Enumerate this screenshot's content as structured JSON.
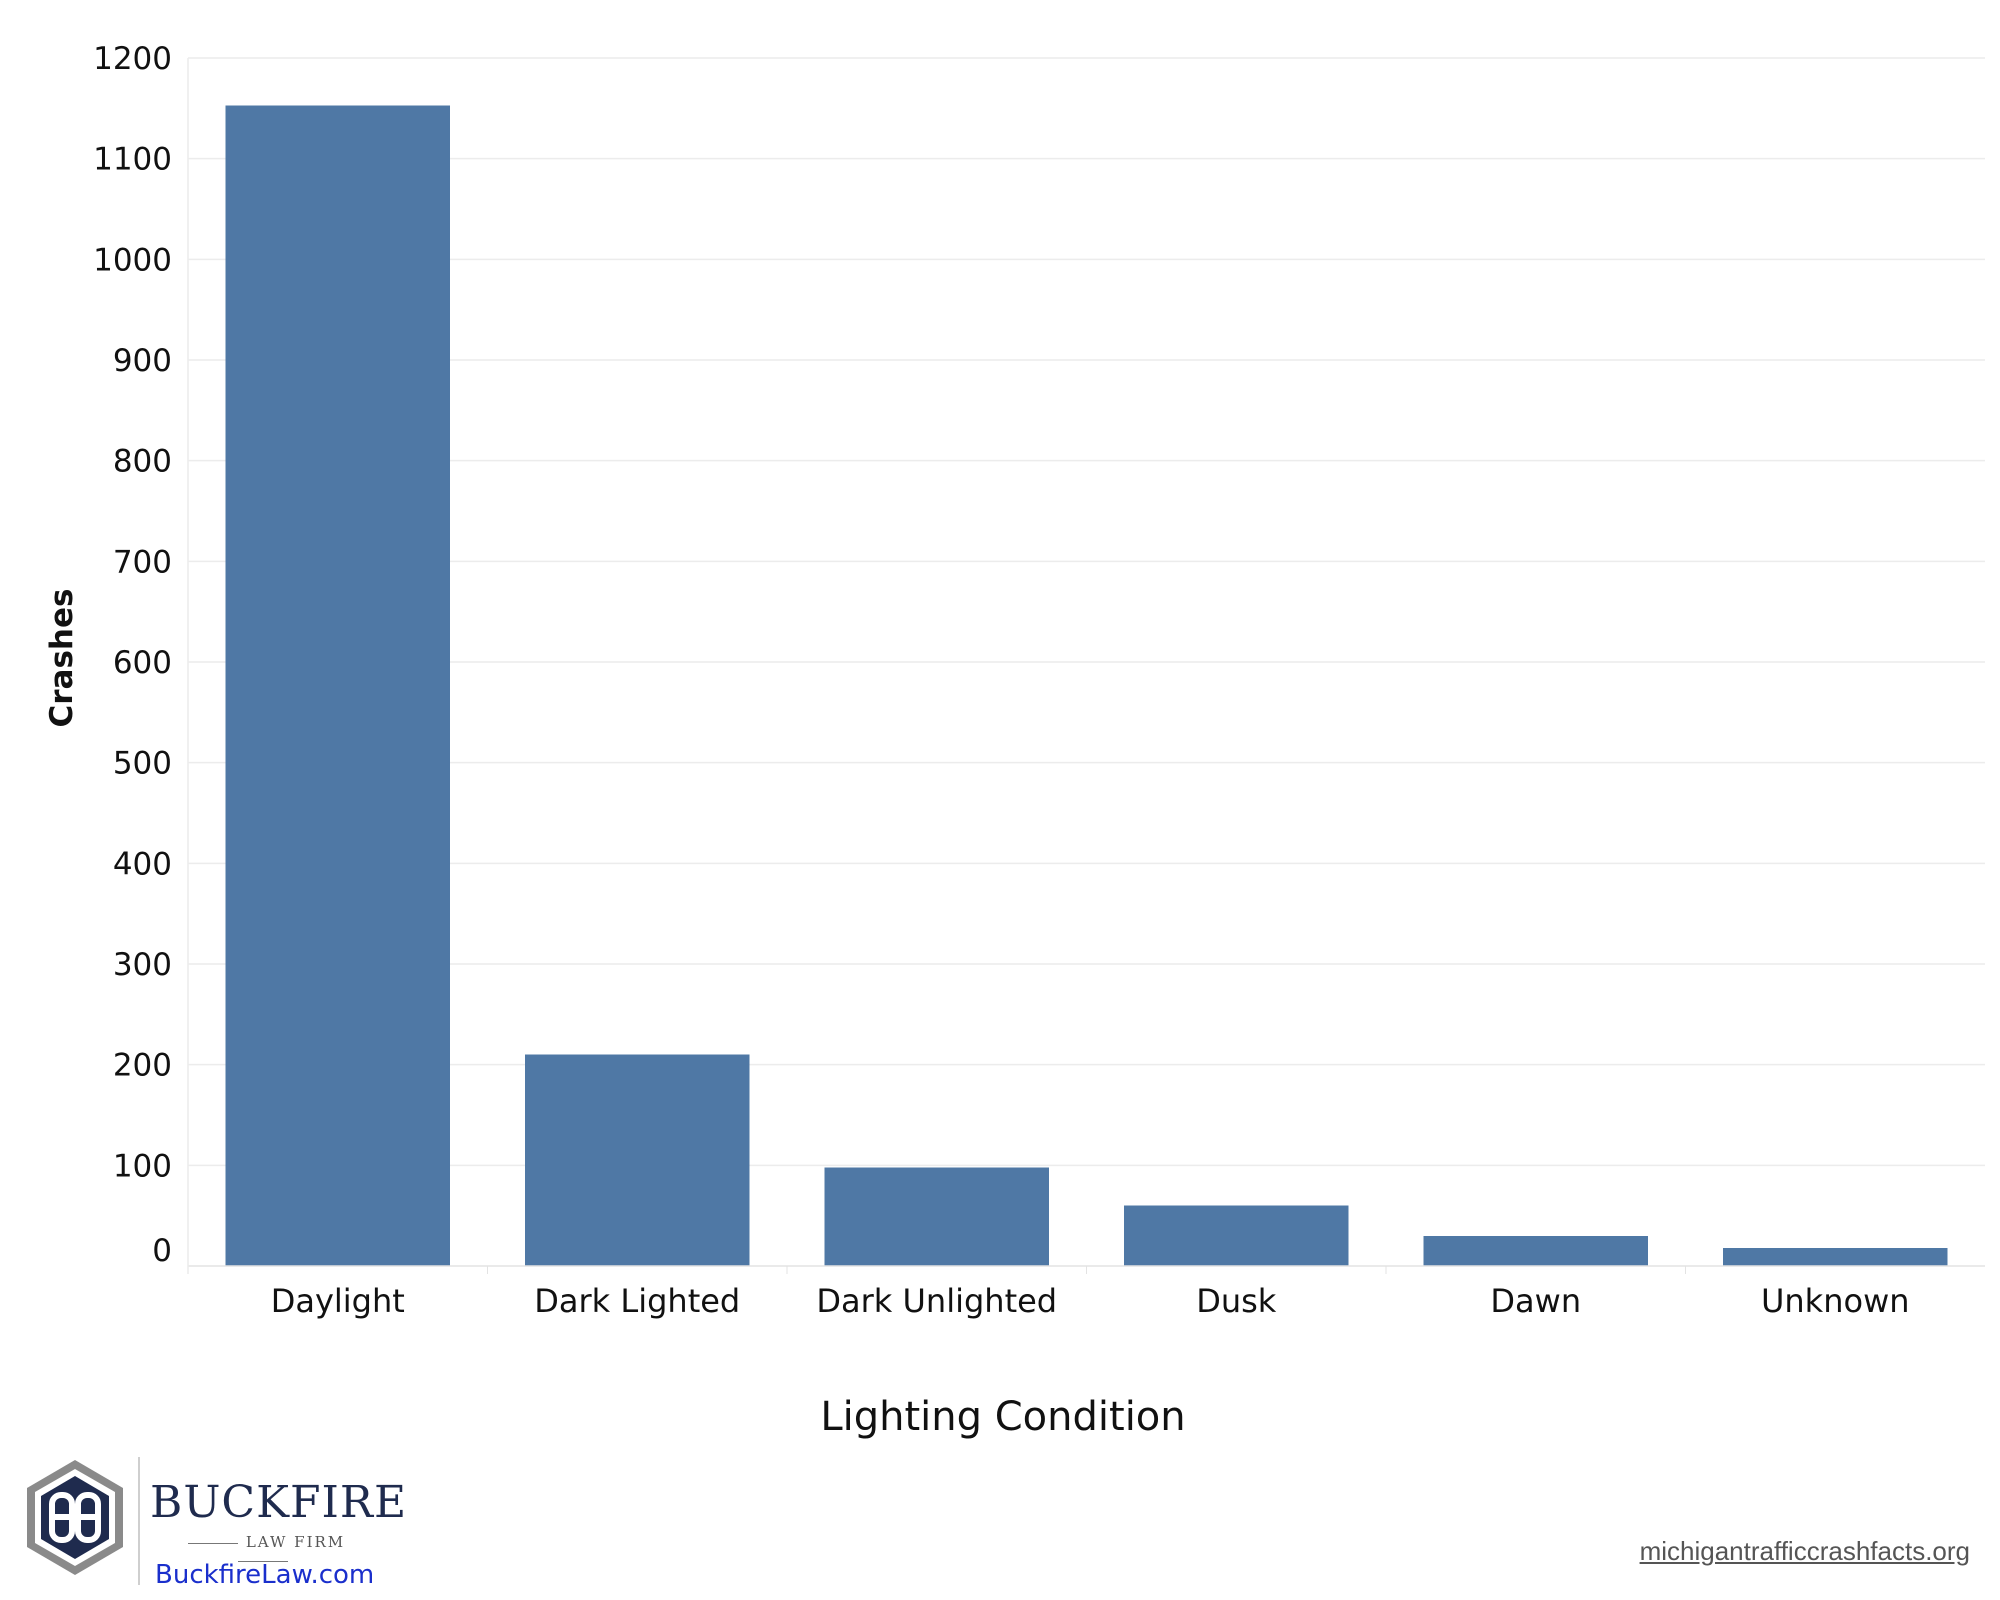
{
  "chart_data": {
    "type": "bar",
    "title": "",
    "xlabel": "Lighting Condition",
    "ylabel": "Crashes",
    "categories": [
      "Daylight",
      "Dark Lighted",
      "Dark Unlighted",
      "Dusk",
      "Dawn",
      "Unknown"
    ],
    "values": [
      1153,
      210,
      98,
      60,
      30,
      18
    ],
    "yticks": [
      0,
      100,
      200,
      300,
      400,
      500,
      600,
      700,
      800,
      900,
      1000,
      1100,
      1200
    ],
    "ylim": [
      0,
      1200
    ],
    "grid": true,
    "bar_color": "#4f78a5"
  },
  "branding": {
    "logo_name": "BUCKFIRE",
    "logo_subtitle": "LAW FIRM",
    "logo_url": "BuckfireLaw.com",
    "logo_colors": {
      "navy": "#1f2b4e",
      "link": "#1a2fcc"
    }
  },
  "source": "michigantrafficcrashfacts.org"
}
